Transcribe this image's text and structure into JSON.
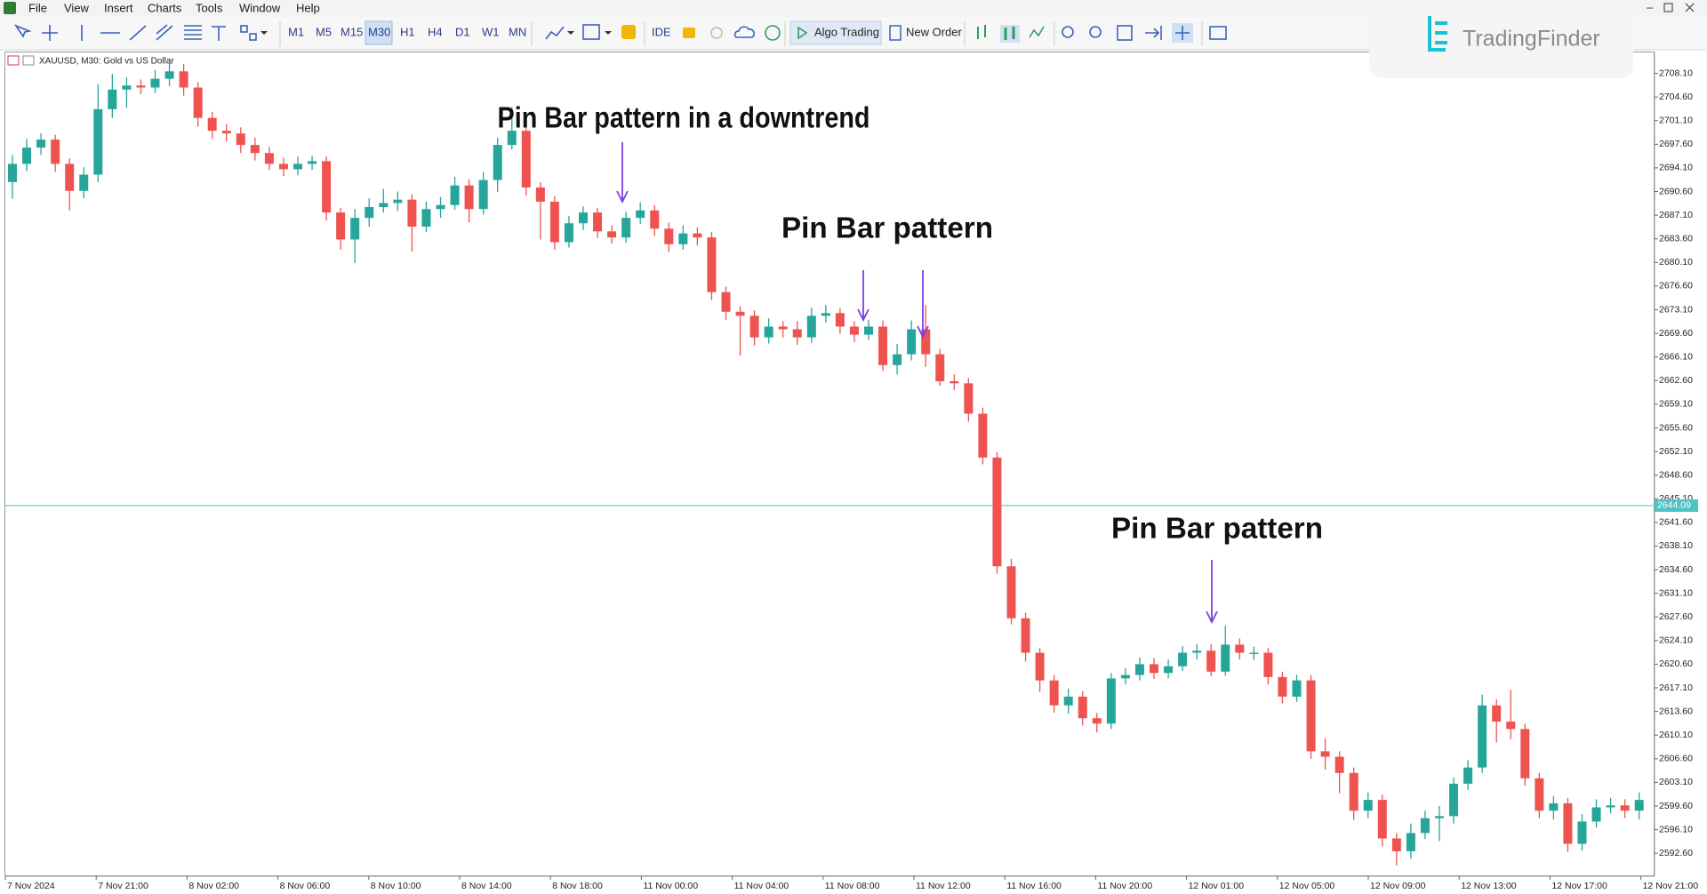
{
  "menu": [
    "File",
    "View",
    "Insert",
    "Charts",
    "Tools",
    "Window",
    "Help"
  ],
  "toolbar": {
    "timeframes": [
      "M1",
      "M5",
      "M15",
      "M30",
      "H1",
      "H4",
      "D1",
      "W1",
      "MN"
    ],
    "ide": "IDE",
    "algo_trading": "Algo Trading",
    "new_order": "New Order"
  },
  "logo": "TradingFinder",
  "chart_data": {
    "type": "candlestick",
    "title": "XAUUSD, M30:  Gold vs US Dollar",
    "annotations": [
      "Pin Bar pattern in a downtrend",
      "Pin Bar pattern",
      "Pin Bar pattern"
    ],
    "x_labels": [
      "7 Nov 2024",
      "7 Nov 21:00",
      "8 Nov 02:00",
      "8 Nov 06:00",
      "8 Nov 10:00",
      "8 Nov 14:00",
      "8 Nov 18:00",
      "11 Nov 00:00",
      "11 Nov 04:00",
      "11 Nov 08:00",
      "11 Nov 12:00",
      "11 Nov 16:00",
      "11 Nov 20:00",
      "12 Nov 01:00",
      "12 Nov 05:00",
      "12 Nov 09:00",
      "12 Nov 13:00",
      "12 Nov 17:00",
      "12 Nov 21:00"
    ],
    "up_color": "#26a69a",
    "down_color": "#ef5350",
    "open": [
      2692.0,
      2694.7,
      2697.1,
      2698.3,
      2694.7,
      2690.7,
      2693.1,
      2702.8,
      2705.7,
      2706.3,
      2706.0,
      2707.3,
      2708.4,
      2706.0,
      2701.5,
      2699.6,
      2699.2,
      2697.5,
      2696.3,
      2694.7,
      2693.9,
      2694.7,
      2695.1,
      2687.5,
      2683.5,
      2686.7,
      2688.3,
      2688.9,
      2689.4,
      2685.4,
      2688.0,
      2688.6,
      2691.5,
      2688.0,
      2692.3,
      2697.5,
      2699.6,
      2691.2,
      2689.1,
      2683.1,
      2685.9,
      2687.5,
      2684.7,
      2683.8,
      2686.7,
      2687.8,
      2685.1,
      2682.8,
      2684.4,
      2683.8,
      2675.7,
      2672.8,
      2672.2,
      2669.0,
      2670.6,
      2670.2,
      2669.0,
      2672.2,
      2672.6,
      2670.6,
      2669.4,
      2670.6,
      2664.9,
      2666.5,
      2670.2,
      2666.5,
      2662.5,
      2662.2,
      2657.7,
      2651.2,
      2635.1,
      2627.4,
      2622.3,
      2618.2,
      2614.5,
      2615.8,
      2612.6,
      2611.8,
      2618.5,
      2619.0,
      2620.6,
      2619.3,
      2620.3,
      2622.3,
      2622.6,
      2619.5,
      2623.5,
      2622.3,
      2622.3,
      2618.7,
      2615.8,
      2618.2,
      2607.7,
      2606.9,
      2604.5,
      2598.9,
      2600.5,
      2594.8,
      2592.9,
      2595.6,
      2597.8,
      2598.1,
      2602.9,
      2605.3,
      2614.5,
      2612.1,
      2611.0,
      2603.7,
      2598.9,
      2600.0,
      2594.0,
      2597.3,
      2599.4,
      2599.7,
      2598.9
    ],
    "high": [
      2696.0,
      2698.4,
      2699.2,
      2699.0,
      2695.5,
      2694.2,
      2706.5,
      2708.0,
      2707.5,
      2707.2,
      2708.6,
      2709.9,
      2709.5,
      2706.8,
      2702.4,
      2700.6,
      2700.1,
      2698.6,
      2697.2,
      2695.6,
      2695.8,
      2695.9,
      2695.8,
      2688.2,
      2688.0,
      2689.6,
      2691.0,
      2690.6,
      2690.2,
      2689.1,
      2689.8,
      2692.8,
      2692.4,
      2693.5,
      2698.6,
      2703.1,
      2700.4,
      2692.0,
      2689.9,
      2687.0,
      2688.4,
      2688.2,
      2685.6,
      2687.6,
      2689.0,
      2688.6,
      2686.0,
      2685.6,
      2685.3,
      2684.6,
      2676.5,
      2673.6,
      2673.0,
      2671.8,
      2671.4,
      2671.4,
      2673.4,
      2673.8,
      2673.4,
      2671.4,
      2671.6,
      2671.5,
      2668.0,
      2671.5,
      2673.8,
      2667.3,
      2663.5,
      2663.0,
      2658.6,
      2652.0,
      2636.2,
      2628.2,
      2623.0,
      2619.0,
      2617.0,
      2616.6,
      2613.4,
      2619.3,
      2620.0,
      2621.6,
      2621.5,
      2621.3,
      2623.3,
      2623.6,
      2623.6,
      2626.3,
      2624.4,
      2623.2,
      2623.0,
      2619.5,
      2619.0,
      2619.0,
      2609.6,
      2607.7,
      2605.3,
      2601.6,
      2601.3,
      2595.6,
      2597.0,
      2598.9,
      2599.6,
      2603.8,
      2606.4,
      2616.1,
      2615.4,
      2616.8,
      2611.8,
      2604.5,
      2601.1,
      2600.8,
      2598.4,
      2600.6,
      2600.8,
      2600.6,
      2601.6
    ],
    "low": [
      2689.5,
      2693.6,
      2696.0,
      2693.5,
      2687.8,
      2689.6,
      2692.0,
      2701.5,
      2703.0,
      2705.0,
      2705.2,
      2706.2,
      2704.8,
      2700.2,
      2698.4,
      2698.0,
      2696.3,
      2695.2,
      2693.8,
      2692.9,
      2693.0,
      2693.8,
      2686.3,
      2682.0,
      2680.0,
      2685.4,
      2687.5,
      2687.7,
      2681.7,
      2684.6,
      2686.7,
      2687.9,
      2686.0,
      2687.2,
      2690.5,
      2696.8,
      2690.0,
      2683.5,
      2682.0,
      2682.3,
      2684.9,
      2683.7,
      2682.9,
      2683.0,
      2685.8,
      2684.0,
      2681.6,
      2682.0,
      2682.6,
      2674.5,
      2671.6,
      2666.3,
      2667.8,
      2668.1,
      2669.0,
      2667.9,
      2668.2,
      2671.2,
      2669.5,
      2668.3,
      2668.6,
      2664.0,
      2663.5,
      2665.6,
      2664.6,
      2661.8,
      2661.2,
      2656.5,
      2650.2,
      2634.0,
      2626.5,
      2621.0,
      2616.5,
      2613.4,
      2613.3,
      2611.5,
      2610.5,
      2611.0,
      2617.6,
      2618.2,
      2618.4,
      2618.5,
      2619.6,
      2621.3,
      2618.8,
      2618.9,
      2621.3,
      2621.2,
      2617.6,
      2614.8,
      2615.0,
      2606.6,
      2605.0,
      2601.5,
      2597.5,
      2597.8,
      2593.6,
      2590.8,
      2591.8,
      2594.7,
      2594.4,
      2597.0,
      2602.0,
      2604.5,
      2609.0,
      2609.5,
      2602.6,
      2597.8,
      2597.6,
      2592.8,
      2593.0,
      2596.4,
      2598.5,
      2597.8,
      2597.6
    ],
    "close": [
      2694.7,
      2697.1,
      2698.3,
      2694.7,
      2690.7,
      2693.1,
      2702.8,
      2705.7,
      2706.3,
      2706.0,
      2707.3,
      2708.4,
      2706.0,
      2701.5,
      2699.6,
      2699.2,
      2697.5,
      2696.3,
      2694.7,
      2693.9,
      2694.7,
      2695.1,
      2687.5,
      2683.5,
      2686.7,
      2688.3,
      2688.9,
      2689.4,
      2685.4,
      2688.0,
      2688.6,
      2691.5,
      2688.0,
      2692.3,
      2697.5,
      2699.6,
      2691.2,
      2689.1,
      2683.1,
      2685.9,
      2687.5,
      2684.7,
      2683.8,
      2686.7,
      2687.8,
      2685.1,
      2682.8,
      2684.4,
      2683.8,
      2675.7,
      2672.8,
      2672.2,
      2669.0,
      2670.6,
      2670.2,
      2669.0,
      2672.2,
      2672.6,
      2670.6,
      2669.4,
      2670.6,
      2664.9,
      2666.5,
      2670.2,
      2666.5,
      2662.5,
      2662.2,
      2657.7,
      2651.2,
      2635.1,
      2627.4,
      2622.3,
      2618.2,
      2614.5,
      2615.8,
      2612.6,
      2611.8,
      2618.5,
      2619.0,
      2620.6,
      2619.3,
      2620.3,
      2622.3,
      2622.6,
      2619.5,
      2623.5,
      2622.3,
      2622.3,
      2618.7,
      2615.8,
      2618.2,
      2607.7,
      2606.9,
      2604.5,
      2598.9,
      2600.5,
      2594.8,
      2592.9,
      2595.6,
      2597.8,
      2598.1,
      2602.9,
      2605.3,
      2614.5,
      2612.1,
      2611.0,
      2603.7,
      2598.9,
      2600.0,
      2594.0,
      2597.3,
      2599.4,
      2599.7,
      2598.9,
      2600.5
    ],
    "ylim": [
      2589.2,
      2711.2
    ],
    "yticks": [
      {
        "value": 2708.1,
        "label": "2708.10"
      },
      {
        "value": 2704.6,
        "label": "2704.60"
      },
      {
        "value": 2701.1,
        "label": "2701.10"
      },
      {
        "value": 2697.6,
        "label": "2697.60"
      },
      {
        "value": 2694.1,
        "label": "2694.10"
      },
      {
        "value": 2690.6,
        "label": "2690.60"
      },
      {
        "value": 2687.1,
        "label": "2687.10"
      },
      {
        "value": 2683.6,
        "label": "2683.60"
      },
      {
        "value": 2680.1,
        "label": "2680.10"
      },
      {
        "value": 2676.6,
        "label": "2676.60"
      },
      {
        "value": 2673.1,
        "label": "2673.10"
      },
      {
        "value": 2669.6,
        "label": "2669.60"
      },
      {
        "value": 2666.1,
        "label": "2666.10"
      },
      {
        "value": 2662.6,
        "label": "2662.60"
      },
      {
        "value": 2659.1,
        "label": "2659.10"
      },
      {
        "value": 2655.6,
        "label": "2655.60"
      },
      {
        "value": 2652.1,
        "label": "2652.10"
      },
      {
        "value": 2648.6,
        "label": "2648.60"
      },
      {
        "value": 2645.1,
        "label": "2645.10"
      },
      {
        "value": 2641.6,
        "label": "2641.60"
      },
      {
        "value": 2638.1,
        "label": "2638.10"
      },
      {
        "value": 2634.6,
        "label": "2634.60"
      },
      {
        "value": 2631.1,
        "label": "2631.10"
      },
      {
        "value": 2627.6,
        "label": "2627.60"
      },
      {
        "value": 2624.1,
        "label": "2624.10"
      },
      {
        "value": 2620.6,
        "label": "2620.60"
      },
      {
        "value": 2617.1,
        "label": "2617.10"
      },
      {
        "value": 2613.6,
        "label": "2613.60"
      },
      {
        "value": 2610.1,
        "label": "2610.10"
      },
      {
        "value": 2606.6,
        "label": "2606.60"
      },
      {
        "value": 2603.1,
        "label": "2603.10"
      },
      {
        "value": 2599.6,
        "label": "2599.60"
      },
      {
        "value": 2596.1,
        "label": "2596.10"
      },
      {
        "value": 2592.6,
        "label": "2592.60"
      }
    ],
    "current_price": {
      "value": 2644.09,
      "label": "2644.09"
    },
    "current_price_color": "#4fc3c3"
  }
}
